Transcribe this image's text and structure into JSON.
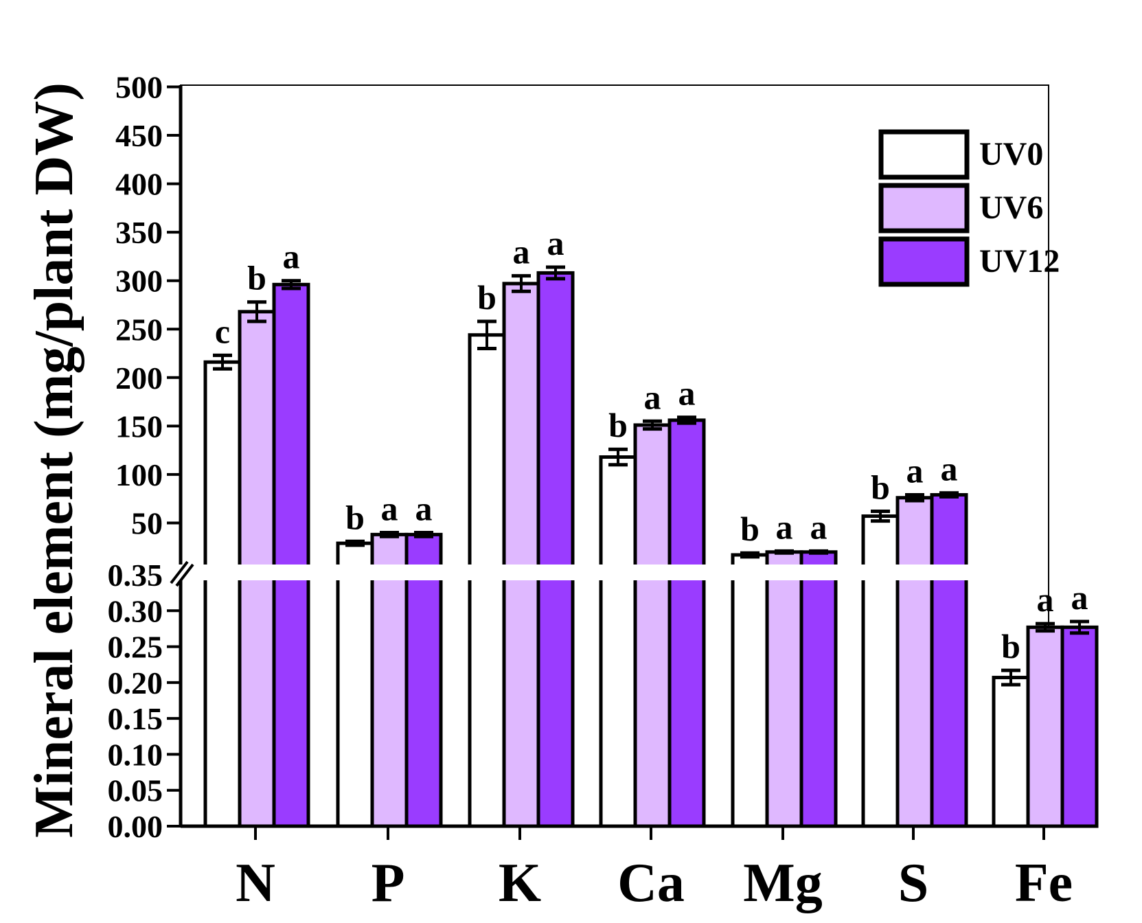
{
  "chart_data": {
    "type": "bar",
    "title": "",
    "xlabel": "",
    "ylabel": "Mineral element (mg/plant DW)",
    "categories": [
      "N",
      "P",
      "K",
      "Ca",
      "Mg",
      "S",
      "Fe"
    ],
    "series": [
      {
        "name": "UV0",
        "color": "#ffffff",
        "values": [
          216,
          29,
          244,
          118,
          17,
          57,
          0.207
        ],
        "errors": [
          7,
          2,
          14,
          8,
          2,
          5,
          0.01
        ],
        "letters": [
          "c",
          "b",
          "b",
          "b",
          "b",
          "b",
          "b"
        ]
      },
      {
        "name": "UV6",
        "color": "#dfb8ff",
        "values": [
          268,
          38,
          297,
          151,
          20,
          76,
          0.277
        ],
        "errors": [
          10,
          2,
          8,
          4,
          1,
          3,
          0.005
        ],
        "letters": [
          "b",
          "a",
          "a",
          "a",
          "a",
          "a",
          "a"
        ]
      },
      {
        "name": "UV12",
        "color": "#9a3cff",
        "values": [
          296,
          38,
          308,
          156,
          20,
          79,
          0.277
        ],
        "errors": [
          4,
          2,
          6,
          3,
          1,
          2,
          0.008
        ],
        "letters": [
          "a",
          "a",
          "a",
          "a",
          "a",
          "a",
          "a"
        ]
      }
    ],
    "y_axis_break": true,
    "upper_axis": {
      "ylim": [
        0,
        500
      ],
      "ticks": [
        "50",
        "100",
        "150",
        "200",
        "250",
        "300",
        "350",
        "400",
        "450",
        "500"
      ]
    },
    "lower_axis": {
      "ylim": [
        0,
        0.35
      ],
      "ticks": [
        "0.00",
        "0.05",
        "0.10",
        "0.15",
        "0.20",
        "0.25",
        "0.30",
        "0.35"
      ]
    },
    "legend": {
      "position": "top-right",
      "entries": [
        "UV0",
        "UV6",
        "UV12"
      ]
    },
    "grid": false
  }
}
